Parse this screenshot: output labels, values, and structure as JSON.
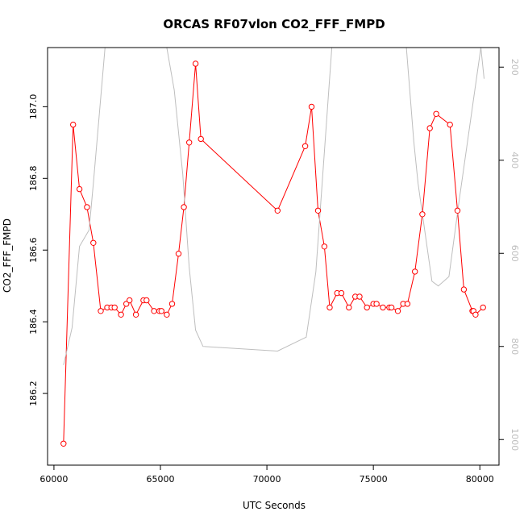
{
  "chart_data": {
    "type": "line",
    "title": "ORCAS RF07vlon CO2_FFF_FMPD",
    "xlabel": "UTC Seconds",
    "ylabel": "CO2_FFF_FMPD",
    "xlim": [
      59700,
      80900
    ],
    "ylim": [
      186.0,
      187.165
    ],
    "y2lim": [
      1055,
      158
    ],
    "y2_reversed": true,
    "x_ticks": [
      60000,
      65000,
      70000,
      75000,
      80000
    ],
    "y_ticks": [
      186.2,
      186.4,
      186.6,
      186.8,
      187.0
    ],
    "y2_ticks": [
      200,
      400,
      600,
      800,
      1000
    ],
    "grid": false,
    "legend": "none",
    "colors": {
      "primary": "#ff0000",
      "secondary": "#bebebe",
      "frame": "#000000"
    },
    "series": [
      {
        "axis": "left",
        "style": "line+open-circle",
        "color": "#ff0000",
        "x": [
          60450,
          60900,
          61200,
          61550,
          61850,
          62200,
          62500,
          62700,
          62850,
          63150,
          63400,
          63550,
          63850,
          64200,
          64350,
          64700,
          64950,
          65050,
          65300,
          65550,
          65850,
          66100,
          66350,
          66650,
          66900,
          70500,
          71800,
          72100,
          72400,
          72700,
          72950,
          73300,
          73500,
          73850,
          74150,
          74350,
          74700,
          75000,
          75150,
          75450,
          75750,
          75850,
          76150,
          76400,
          76600,
          76950,
          77300,
          77650,
          77950,
          78600,
          78950,
          79250,
          79650,
          79700,
          79800,
          80150
        ],
        "y": [
          186.06,
          186.95,
          186.77,
          186.72,
          186.62,
          186.43,
          186.44,
          186.44,
          186.44,
          186.42,
          186.45,
          186.46,
          186.42,
          186.46,
          186.46,
          186.43,
          186.43,
          186.43,
          186.42,
          186.45,
          186.59,
          186.72,
          186.9,
          187.12,
          186.91,
          186.71,
          186.89,
          187.0,
          186.71,
          186.61,
          186.44,
          186.48,
          186.48,
          186.44,
          186.47,
          186.47,
          186.44,
          186.45,
          186.45,
          186.44,
          186.44,
          186.44,
          186.43,
          186.45,
          186.45,
          186.54,
          186.7,
          186.94,
          186.98,
          186.95,
          186.71,
          186.49,
          186.43,
          186.43,
          186.42,
          186.44
        ]
      },
      {
        "axis": "right",
        "style": "line",
        "color": "#bebebe",
        "x": [
          60450,
          60850,
          61200,
          61650,
          61850,
          62400,
          65300,
          65650,
          66050,
          66350,
          66650,
          67000,
          70500,
          71850,
          72300,
          73050,
          76550,
          76900,
          77100,
          77750,
          78050,
          78550,
          79050,
          80050,
          80200
        ],
        "y": [
          840,
          760,
          585,
          550,
          450,
          158,
          158,
          250,
          430,
          630,
          765,
          800,
          810,
          780,
          640,
          158,
          158,
          360,
          450,
          660,
          670,
          650,
          480,
          158,
          225
        ]
      }
    ]
  }
}
